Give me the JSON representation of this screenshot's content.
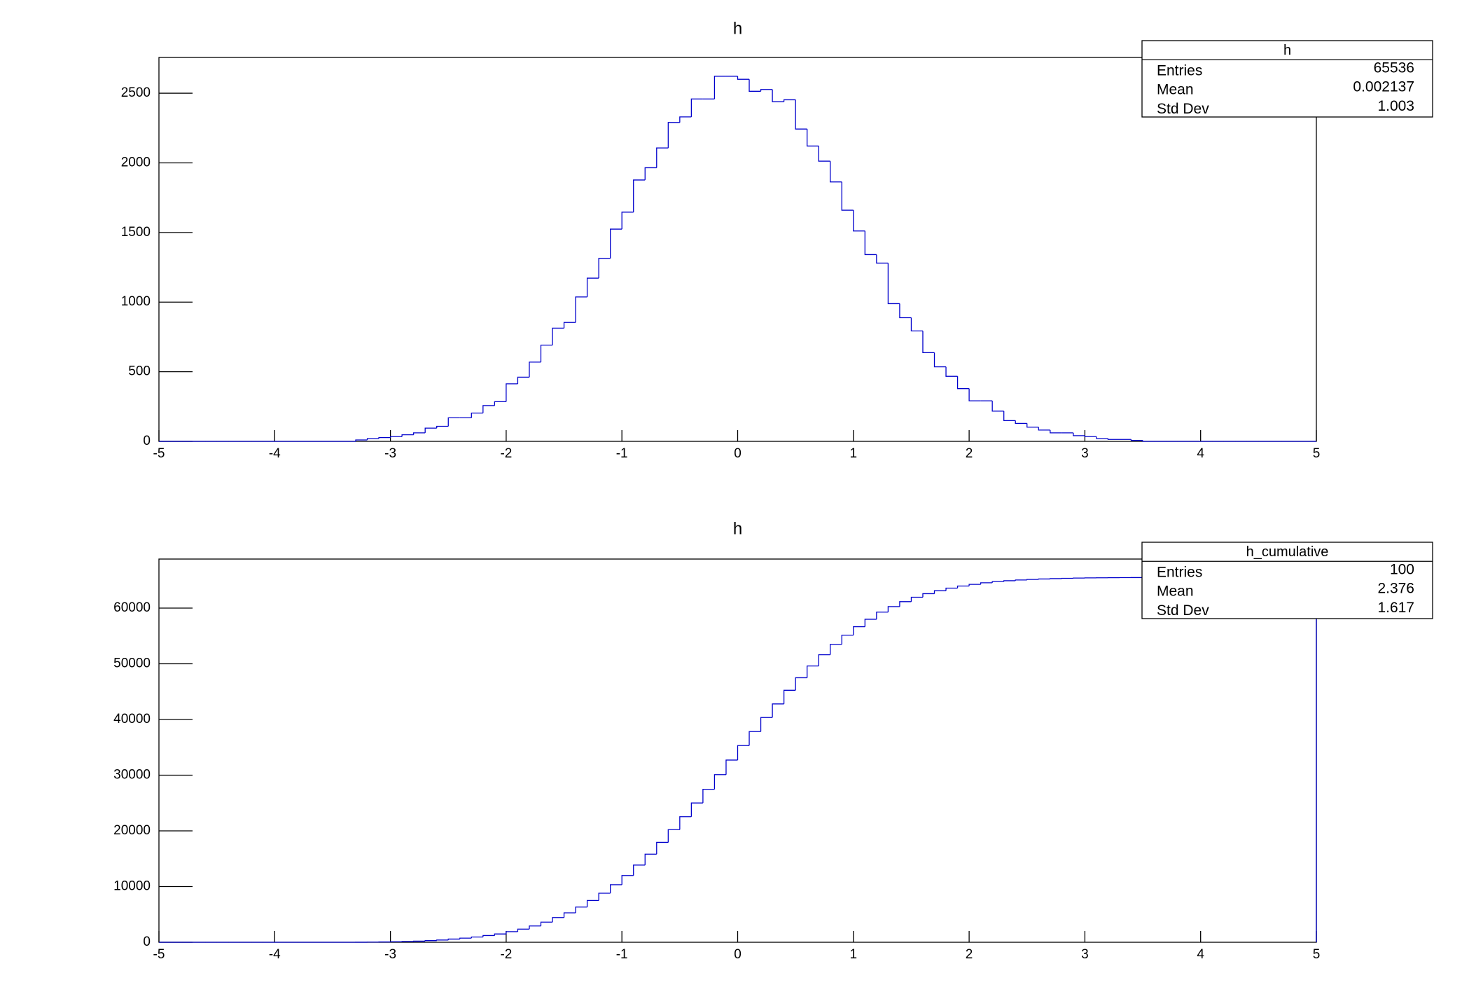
{
  "chart_data": [
    {
      "type": "histogram",
      "title": "h",
      "color": "#0000cc",
      "bins": [
        -5,
        -4.9,
        -4.8,
        -4.7,
        -4.6,
        -4.5,
        -4.4,
        -4.3,
        -4.2,
        -4.1,
        -4,
        -3.9,
        -3.8,
        -3.7,
        -3.6,
        -3.5,
        -3.4,
        -3.3,
        -3.2,
        -3.1,
        -3,
        -2.9,
        -2.8,
        -2.7,
        -2.6,
        -2.5,
        -2.4,
        -2.3,
        -2.2,
        -2.1,
        -2,
        -1.9,
        -1.8,
        -1.7,
        -1.6,
        -1.5,
        -1.4,
        -1.3,
        -1.2,
        -1.1,
        -1,
        -0.9,
        -0.8,
        -0.7,
        -0.6,
        -0.5,
        -0.4,
        -0.3,
        -0.2,
        -0.1,
        0,
        0.1,
        0.2,
        0.3,
        0.4,
        0.5,
        0.6,
        0.7,
        0.8,
        0.9,
        1,
        1.1,
        1.2,
        1.3,
        1.4,
        1.5,
        1.6,
        1.7,
        1.8,
        1.9,
        2,
        2.1,
        2.2,
        2.3,
        2.4,
        2.5,
        2.6,
        2.7,
        2.8,
        2.9,
        3,
        3.1,
        3.2,
        3.3,
        3.4,
        3.5,
        3.6,
        3.7,
        3.8,
        3.9,
        4,
        4.1,
        4.2,
        4.3,
        4.4,
        4.5,
        4.6,
        4.7,
        4.8,
        4.9,
        5
      ],
      "values": [
        0,
        0,
        0,
        0,
        0,
        0,
        0,
        0,
        0,
        0,
        0,
        0,
        0,
        0,
        0,
        0,
        0,
        10,
        20,
        27,
        34,
        47,
        61,
        95,
        108,
        169,
        169,
        203,
        257,
        285,
        413,
        461,
        569,
        691,
        813,
        854,
        1037,
        1172,
        1314,
        1524,
        1646,
        1877,
        1965,
        2107,
        2290,
        2330,
        2459,
        2459,
        2622,
        2622,
        2600,
        2514,
        2527,
        2439,
        2453,
        2243,
        2121,
        2012,
        1863,
        1660,
        1511,
        1341,
        1280,
        989,
        888,
        793,
        637,
        535,
        467,
        379,
        291,
        291,
        217,
        149,
        129,
        102,
        81,
        61,
        61,
        41,
        34,
        20,
        14,
        14,
        7,
        0,
        0,
        0,
        0,
        0,
        0,
        0,
        0,
        0,
        0,
        0,
        0,
        0,
        0,
        0
      ],
      "xlim": [
        -5,
        5
      ],
      "xticks": [
        -5,
        -4,
        -3,
        -2,
        -1,
        0,
        1,
        2,
        3,
        4,
        5
      ],
      "ylim": [
        0,
        2757
      ],
      "yticks": [
        0,
        500,
        1000,
        1500,
        2000,
        2500
      ],
      "stats": {
        "title": "h",
        "rows": [
          {
            "label": "Entries",
            "value": 65536
          },
          {
            "label": "Mean",
            "value": 0.002137
          },
          {
            "label": "Std Dev",
            "value": 1.003
          }
        ]
      }
    },
    {
      "type": "histogram",
      "title": "h",
      "color": "#0000cc",
      "bins": [
        -5,
        -4.9,
        -4.8,
        -4.7,
        -4.6,
        -4.5,
        -4.4,
        -4.3,
        -4.2,
        -4.1,
        -4,
        -3.9,
        -3.8,
        -3.7,
        -3.6,
        -3.5,
        -3.4,
        -3.3,
        -3.2,
        -3.1,
        -3,
        -2.9,
        -2.8,
        -2.7,
        -2.6,
        -2.5,
        -2.4,
        -2.3,
        -2.2,
        -2.1,
        -2,
        -1.9,
        -1.8,
        -1.7,
        -1.6,
        -1.5,
        -1.4,
        -1.3,
        -1.2,
        -1.1,
        -1,
        -0.9,
        -0.8,
        -0.7,
        -0.6,
        -0.5,
        -0.4,
        -0.3,
        -0.2,
        -0.1,
        0,
        0.1,
        0.2,
        0.3,
        0.4,
        0.5,
        0.6,
        0.7,
        0.8,
        0.9,
        1,
        1.1,
        1.2,
        1.3,
        1.4,
        1.5,
        1.6,
        1.7,
        1.8,
        1.9,
        2,
        2.1,
        2.2,
        2.3,
        2.4,
        2.5,
        2.6,
        2.7,
        2.8,
        2.9,
        3,
        3.1,
        3.2,
        3.3,
        3.4,
        3.5,
        3.6,
        3.7,
        3.8,
        3.9,
        4,
        4.1,
        4.2,
        4.3,
        4.4,
        4.5,
        4.6,
        4.7,
        4.8,
        4.9,
        5
      ],
      "values": [
        0,
        0,
        0,
        0,
        0,
        0,
        0,
        0,
        0,
        0,
        0,
        0,
        0,
        0,
        0,
        0,
        0,
        10,
        30,
        57,
        91,
        138,
        199,
        294,
        402,
        571,
        740,
        943,
        1200,
        1485,
        1898,
        2359,
        2928,
        3619,
        4432,
        5286,
        6323,
        7495,
        8809,
        10333,
        11979,
        13856,
        15821,
        17928,
        20218,
        22548,
        25007,
        27466,
        30088,
        32710,
        35310,
        37824,
        40351,
        42790,
        45243,
        47486,
        49607,
        51619,
        53482,
        55142,
        56653,
        57994,
        59274,
        60263,
        61151,
        61944,
        62581,
        63116,
        63583,
        63962,
        64253,
        64544,
        64761,
        64910,
        65039,
        65141,
        65222,
        65283,
        65344,
        65385,
        65419,
        65439,
        65453,
        65467,
        65474,
        65474,
        65474,
        65474,
        65474,
        65474,
        65474,
        65474,
        65474,
        65474,
        65474,
        65474,
        65474,
        65474,
        65474,
        65474
      ],
      "xlim": [
        -5,
        5
      ],
      "xticks": [
        -5,
        -4,
        -3,
        -2,
        -1,
        0,
        1,
        2,
        3,
        4,
        5
      ],
      "ylim": [
        0,
        68800
      ],
      "yticks": [
        0,
        10000,
        20000,
        30000,
        40000,
        50000,
        60000
      ],
      "stats": {
        "title": "h_cumulative",
        "rows": [
          {
            "label": "Entries",
            "value": 100
          },
          {
            "label": "Mean",
            "value": 2.376
          },
          {
            "label": "Std Dev",
            "value": 1.617
          }
        ]
      }
    }
  ]
}
